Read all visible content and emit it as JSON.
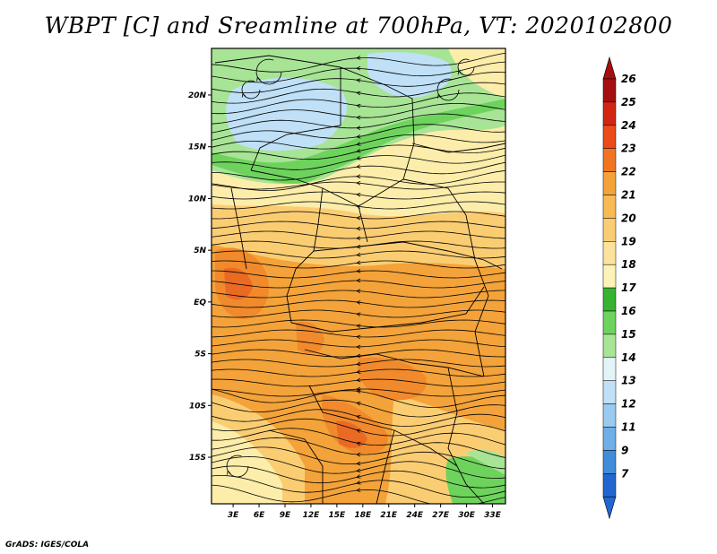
{
  "title": "WBPT [C] and Sreamline at 700hPa, VT: 2020102800",
  "footer": "GrADS: IGES/COLA",
  "map": {
    "lat_range": [
      -19.5,
      24.5
    ],
    "lon_range": [
      0.5,
      34.5
    ],
    "lat_ticks": [
      {
        "value": 20,
        "label": "20N"
      },
      {
        "value": 15,
        "label": "15N"
      },
      {
        "value": 10,
        "label": "10N"
      },
      {
        "value": 5,
        "label": "5N"
      },
      {
        "value": 0,
        "label": "EQ"
      },
      {
        "value": -5,
        "label": "5S"
      },
      {
        "value": -10,
        "label": "10S"
      },
      {
        "value": -15,
        "label": "15S"
      }
    ],
    "lon_ticks": [
      {
        "value": 3,
        "label": "3E"
      },
      {
        "value": 6,
        "label": "6E"
      },
      {
        "value": 9,
        "label": "9E"
      },
      {
        "value": 12,
        "label": "12E"
      },
      {
        "value": 15,
        "label": "15E"
      },
      {
        "value": 18,
        "label": "18E"
      },
      {
        "value": 21,
        "label": "21E"
      },
      {
        "value": 24,
        "label": "24E"
      },
      {
        "value": 27,
        "label": "27E"
      },
      {
        "value": 30,
        "label": "30E"
      },
      {
        "value": 33,
        "label": "33E"
      }
    ],
    "field_colors": {
      "light_blue": "#bfe0f6",
      "light_green": "#a8e495",
      "green": "#6ed35d",
      "yellow": "#fdedaa",
      "light_orange": "#fbcd73",
      "orange": "#f3a33a",
      "dark_orange": "#f08a2c",
      "red_orange": "#ea6a24"
    }
  },
  "colorbar": {
    "labels": [
      "26",
      "25",
      "24",
      "23",
      "22",
      "21",
      "20",
      "19",
      "18",
      "17",
      "16",
      "15",
      "14",
      "13",
      "12",
      "11",
      "9",
      "7"
    ],
    "colors": [
      "#a50f0f",
      "#d32612",
      "#ec4a16",
      "#f07421",
      "#f3a33a",
      "#f8ba52",
      "#fbcd73",
      "#fde29c",
      "#fdf3b8",
      "#37b332",
      "#6ed35d",
      "#a8e495",
      "#e3f4f8",
      "#bfe0f6",
      "#99cbf0",
      "#6faee6",
      "#3f8ddb",
      "#2266d0"
    ],
    "top_arrow_color": "#a50f0f",
    "bottom_arrow_color": "#2266d0"
  }
}
